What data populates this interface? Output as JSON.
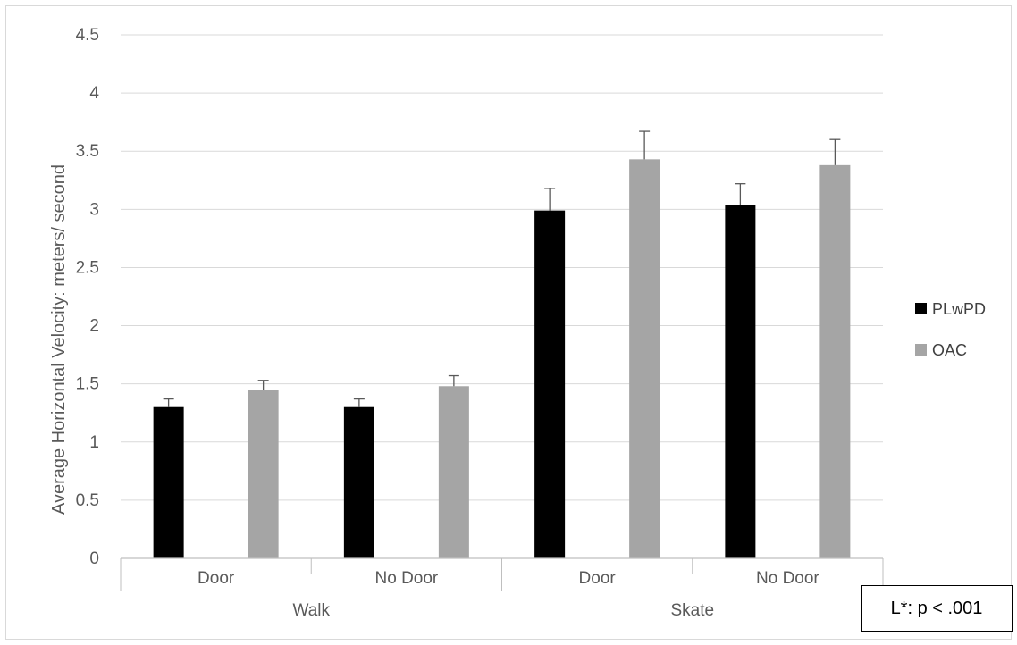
{
  "chart_data": {
    "type": "bar",
    "title": "",
    "xlabel": "",
    "ylabel": "Average Horizontal Velocity: meters/ second",
    "ylim": [
      0,
      4.5
    ],
    "yticks": [
      "0",
      "0.5",
      "1",
      "1.5",
      "2",
      "2.5",
      "3",
      "3.5",
      "4",
      "4.5"
    ],
    "categories": [
      "Door",
      "No Door",
      "Door",
      "No Door"
    ],
    "groups": [
      {
        "label": "Walk",
        "span": [
          0,
          1
        ]
      },
      {
        "label": "Skate",
        "span": [
          2,
          3
        ]
      }
    ],
    "series": [
      {
        "name": "PLwPD",
        "color": "#000000",
        "values": [
          1.3,
          1.3,
          2.99,
          3.04
        ],
        "errors": [
          0.07,
          0.07,
          0.19,
          0.18
        ]
      },
      {
        "name": "OAC",
        "color": "#a5a5a5",
        "values": [
          1.45,
          1.48,
          3.43,
          3.38
        ],
        "errors": [
          0.08,
          0.09,
          0.24,
          0.22
        ]
      }
    ],
    "grid": true,
    "legend_position": "right"
  },
  "annotation": "L*: p < .001"
}
